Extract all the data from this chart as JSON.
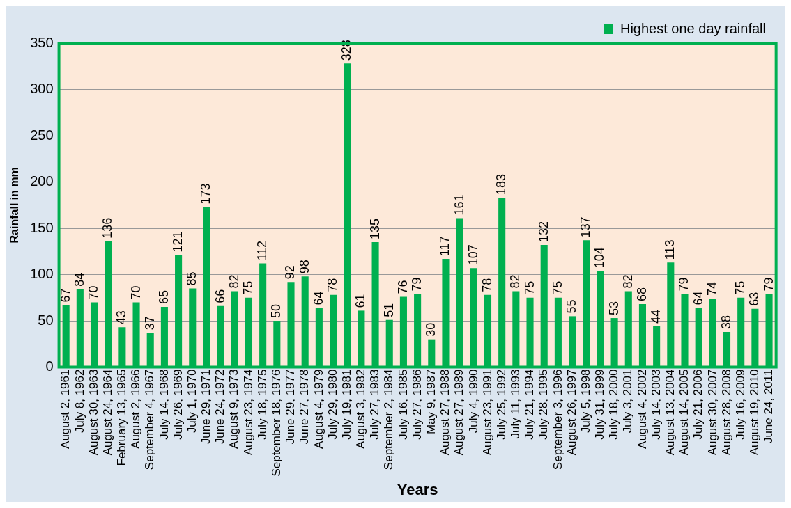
{
  "chart_data": {
    "type": "bar",
    "xlabel": "Years",
    "ylabel": "Rainfall in mm",
    "categories": [
      "August 2, 1961",
      "July 8, 1962",
      "August 30, 1963",
      "August 24, 1964",
      "February 13, 1965",
      "August 2, 1966",
      "September 4, 1967",
      "July 14, 1968",
      "July 26, 1969",
      "July 1, 1970",
      "June 29, 1971",
      "June 24, 1972",
      "August 9, 1973",
      "August 23, 1974",
      "July 18, 1975",
      "September 18, 1976",
      "June 29, 1977",
      "June 27, 1978",
      "August 4, 1979",
      "July 29, 1980",
      "July 19, 1981",
      "August 3, 1982",
      "July 27, 1983",
      "September 2, 1984",
      "July 16, 1985",
      "July 27, 1986",
      "May 9, 1987",
      "August 27, 1988",
      "August 27, 1989",
      "July 4, 1990",
      "August 23, 1991",
      "July 25, 1992",
      "July 11, 1993",
      "July 21, 1994",
      "July 28, 1995",
      "September 3, 1996",
      "August 26, 1997",
      "July 5, 1998",
      "July 31, 1999",
      "July 18, 2000",
      "July 3, 2001",
      "August 4, 2002",
      "July 14, 2003",
      "August 13, 2004",
      "August 14, 2005",
      "July 21, 2006",
      "August 30, 2007",
      "August 28, 2008",
      "July 16, 2009",
      "August 19, 2010",
      "June 24, 2011"
    ],
    "series": [
      {
        "name": "Highest one day rainfall",
        "color": "#00b050",
        "values": [
          67,
          84,
          70,
          136,
          43,
          70,
          37,
          65,
          121,
          85,
          173,
          66,
          82,
          75,
          112,
          50,
          92,
          98,
          64,
          78,
          328,
          61,
          135,
          51,
          76,
          79,
          30,
          117,
          161,
          107,
          78,
          183,
          82,
          75,
          132,
          75,
          55,
          137,
          104,
          53,
          82,
          68,
          44,
          113,
          79,
          64,
          74,
          38,
          75,
          63,
          79
        ]
      }
    ],
    "ylim": [
      0,
      350
    ],
    "yticks": [
      0,
      50,
      100,
      150,
      200,
      250,
      300,
      350
    ],
    "grid": "y",
    "legend": "top right",
    "data_labels": true
  }
}
